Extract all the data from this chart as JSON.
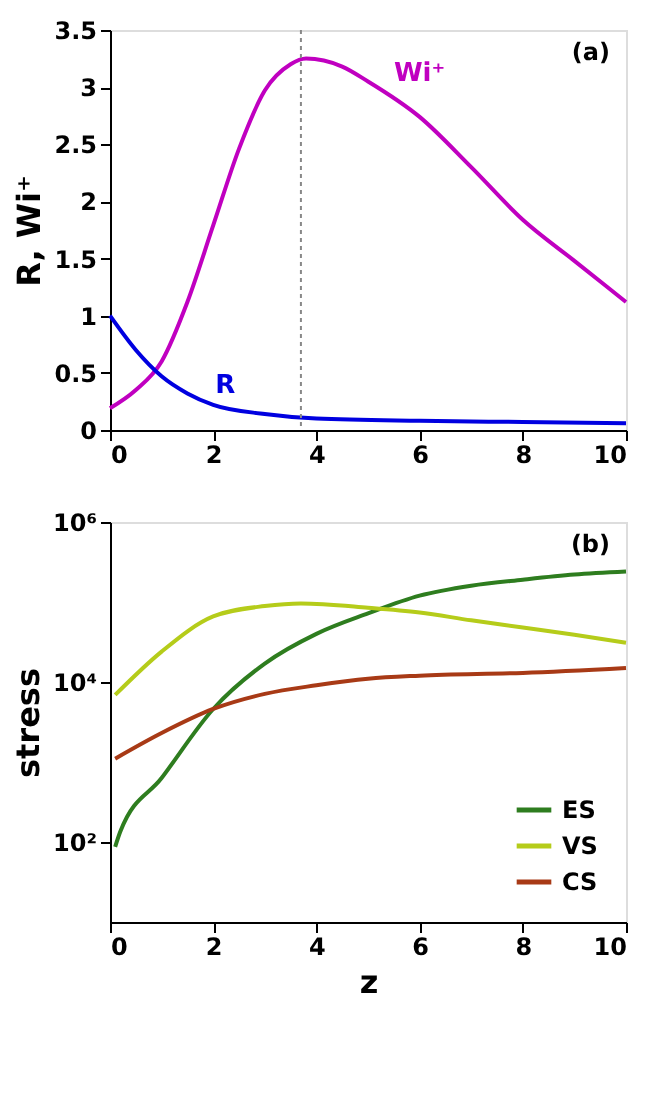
{
  "chart_data": [
    {
      "type": "line",
      "ylabel": "R, Wi⁺",
      "xlim": [
        0,
        10
      ],
      "xticks": [
        0,
        2,
        4,
        6,
        8,
        10
      ],
      "ylim": [
        0,
        3.5
      ],
      "yticks": [
        0,
        0.5,
        1,
        1.5,
        2,
        2.5,
        3,
        3.5
      ],
      "grid": false,
      "legend": false,
      "annotations": [
        "(a)"
      ],
      "ref_lines": [
        {
          "axis": "x",
          "value": 3.7,
          "color": "#888888",
          "line_style": "dotted"
        }
      ],
      "series": [
        {
          "name": "Wi⁺",
          "color": "#c000c0",
          "x": [
            0,
            0.5,
            1,
            1.5,
            2,
            2.5,
            3,
            3.5,
            3.8,
            4.5,
            5,
            6,
            7,
            8,
            9,
            10
          ],
          "values": [
            0.19,
            0.35,
            0.6,
            1.12,
            1.79,
            2.46,
            2.97,
            3.2,
            3.25,
            3.18,
            3.05,
            2.74,
            2.3,
            1.84,
            1.48,
            1.12
          ]
        },
        {
          "name": "R",
          "color": "#0000e0",
          "x": [
            0,
            0.5,
            1,
            1.5,
            2,
            3,
            4,
            6,
            8,
            10
          ],
          "values": [
            1.0,
            0.7,
            0.47,
            0.32,
            0.22,
            0.14,
            0.1,
            0.08,
            0.07,
            0.06
          ]
        }
      ]
    },
    {
      "type": "line",
      "xlabel": "z",
      "ylabel": "stress",
      "log": true,
      "xlim": [
        0,
        10
      ],
      "xticks": [
        0,
        2,
        4,
        6,
        8,
        10
      ],
      "ylim": [
        10,
        1000000
      ],
      "yticks": [
        {
          "value": 100,
          "label": "10²"
        },
        {
          "value": 10000,
          "label": "10⁴"
        },
        {
          "value": 1000000,
          "label": "10⁶"
        }
      ],
      "grid": false,
      "legend": "bottom right",
      "annotations": [
        "(b)"
      ],
      "series": [
        {
          "name": "ES",
          "color": "#2e7d1f",
          "x": [
            0.1,
            0.2,
            1,
            2,
            3,
            4,
            5,
            6,
            7,
            8,
            9,
            10
          ],
          "values": [
            87,
            135,
            630,
            4600,
            17000,
            40000,
            72000,
            120000,
            160000,
            190000,
            220000,
            240000
          ]
        },
        {
          "name": "VS",
          "color": "#b5cc1a",
          "x": [
            0.1,
            1,
            2,
            3,
            3.7,
            5,
            6,
            7,
            8,
            9,
            10
          ],
          "values": [
            6900,
            24000,
            66000,
            89000,
            96000,
            85000,
            74000,
            59000,
            48000,
            39000,
            31000
          ]
        },
        {
          "name": "CS",
          "color": "#a83a16",
          "x": [
            0.1,
            1,
            2,
            3,
            4,
            5,
            6,
            8,
            10
          ],
          "values": [
            1100,
            2300,
            4600,
            7100,
            9100,
            11000,
            12000,
            13000,
            15000
          ]
        }
      ]
    }
  ]
}
